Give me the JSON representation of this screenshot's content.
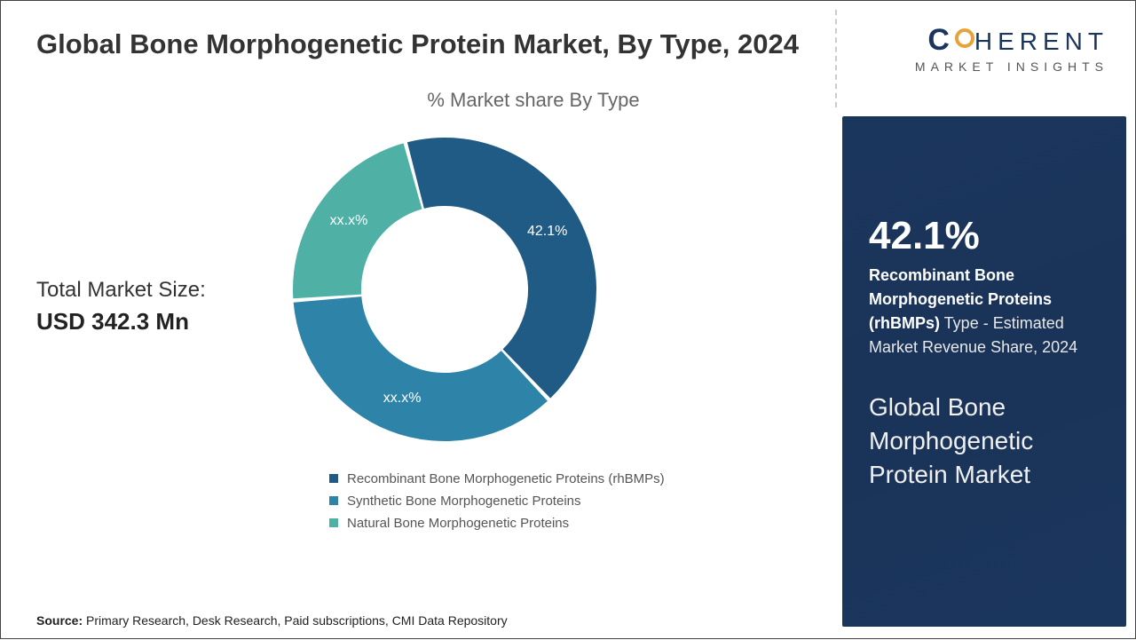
{
  "title": "Global Bone Morphogenetic Protein Market, By Type, 2024",
  "chart": {
    "subtitle": "% Market share By Type",
    "type": "donut",
    "inner_radius": 0.55,
    "outer_radius": 1.0,
    "gap_deg": 1.5,
    "start_angle_deg": -15,
    "slices": [
      {
        "name": "Recombinant Bone Morphogenetic Proteins (rhBMPs)",
        "value": 42.1,
        "label": "42.1%",
        "color": "#1f5b84"
      },
      {
        "name": "Synthetic Bone Morphogenetic Proteins",
        "value": 35.9,
        "label": "xx.x%",
        "color": "#2e84a8"
      },
      {
        "name": "Natural Bone Morphogenetic Proteins",
        "value": 22.0,
        "label": "xx.x%",
        "color": "#4fb0a5"
      }
    ],
    "label_color": "#ffffff",
    "label_fontsize": 16,
    "background_color": "#ffffff"
  },
  "market_size": {
    "label": "Total Market Size:",
    "value": "USD 342.3 Mn"
  },
  "legend": {
    "items": [
      {
        "label": "Recombinant Bone Morphogenetic Proteins (rhBMPs)",
        "color": "#1f5b84"
      },
      {
        "label": "Synthetic Bone Morphogenetic Proteins",
        "color": "#2e84a8"
      },
      {
        "label": "Natural Bone Morphogenetic Proteins",
        "color": "#4fb0a5"
      }
    ]
  },
  "source": {
    "label": "Source:",
    "text": "Primary Research, Desk Research, Paid subscriptions, CMI Data Repository"
  },
  "logo": {
    "main_prefix": "C",
    "main_rest": "HERENT",
    "sub": "MARKET INSIGHTS",
    "ring_color": "#e8a23a",
    "text_color": "#1b365d"
  },
  "side_panel": {
    "background": "#1b365d",
    "pct": "42.1%",
    "desc_bold": "Recombinant Bone Morphogenetic Proteins (rhBMPs)",
    "desc_rest": " Type - Estimated Market Revenue Share, 2024",
    "title": "Global Bone Morphogenetic Protein Market"
  }
}
